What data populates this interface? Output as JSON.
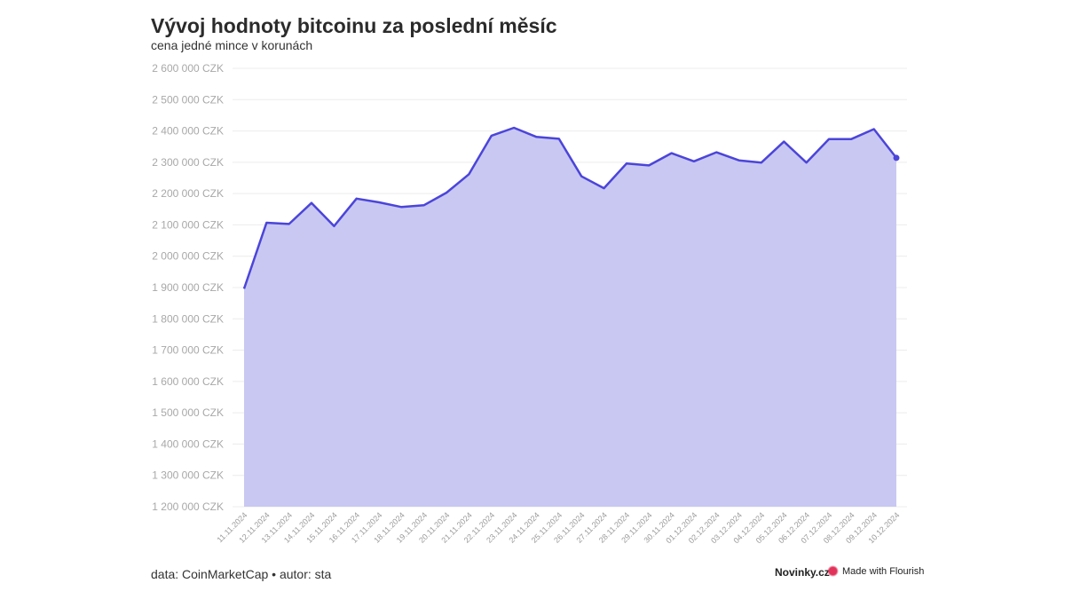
{
  "header": {
    "title": "Vývoj hodnoty bitcoinu za poslední měsíc",
    "subtitle": "cena jedné mince v korunách"
  },
  "footer": {
    "source": "data: CoinMarketCap • autor: sta",
    "brand": "Novinky.cz",
    "flourish": "Made with Flourish"
  },
  "colors": {
    "line": "#4b45d9",
    "area": "#c9c8f3",
    "grid": "#ececec"
  },
  "chart_data": {
    "type": "area",
    "title": "Vývoj hodnoty bitcoinu za poslední měsíc",
    "subtitle": "cena jedné mince v korunách",
    "ylim": [
      1200000,
      2600000
    ],
    "yticks": [
      1200000,
      1300000,
      1400000,
      1500000,
      1600000,
      1700000,
      1800000,
      1900000,
      2000000,
      2100000,
      2200000,
      2300000,
      2400000,
      2500000,
      2600000
    ],
    "ytick_labels": [
      "1 200 000 CZK",
      "1 300 000 CZK",
      "1 400 000 CZK",
      "1 500 000 CZK",
      "1 600 000 CZK",
      "1 700 000 CZK",
      "1 800 000 CZK",
      "1 900 000 CZK",
      "2 000 000 CZK",
      "2 100 000 CZK",
      "2 200 000 CZK",
      "2 300 000 CZK",
      "2 400 000 CZK",
      "2 500 000 CZK",
      "2 600 000 CZK"
    ],
    "grid": true,
    "x": [
      "11.11.2024",
      "12.11.2024",
      "13.11.2024",
      "14.11.2024",
      "15.11.2024",
      "16.11.2024",
      "17.11.2024",
      "18.11.2024",
      "19.11.2024",
      "20.11.2024",
      "21.11.2024",
      "22.11.2024",
      "23.11.2024",
      "24.11.2024",
      "25.11.2024",
      "26.11.2024",
      "27.11.2024",
      "28.11.2024",
      "29.11.2024",
      "30.11.2024",
      "01.12.2024",
      "02.12.2024",
      "03.12.2024",
      "04.12.2024",
      "05.12.2024",
      "06.12.2024",
      "07.12.2024",
      "08.12.2024",
      "09.12.2024",
      "10.12.2024"
    ],
    "values": [
      1896000,
      2107000,
      2103000,
      2170000,
      2096000,
      2184000,
      2172000,
      2157000,
      2163000,
      2203000,
      2262000,
      2385000,
      2410000,
      2381000,
      2375000,
      2255000,
      2217000,
      2296000,
      2290000,
      2329000,
      2303000,
      2332000,
      2306000,
      2299000,
      2366000,
      2299000,
      2374000,
      2374000,
      2406000,
      2314000
    ]
  }
}
